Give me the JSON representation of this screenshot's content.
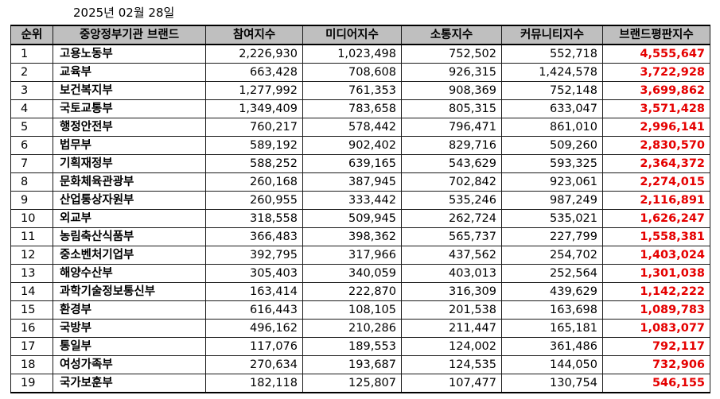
{
  "date_caption": "2025년 02월 28일",
  "colors": {
    "header_bg": "#bfbfbf",
    "brand_index_text": "#e50000",
    "border": "#1a1a1a"
  },
  "table": {
    "headers": [
      "순위",
      "중앙정부기관 브랜드",
      "참여지수",
      "미디어지수",
      "소통지수",
      "커뮤니티지수",
      "브랜드평판지수"
    ],
    "rows": [
      {
        "rank": "1",
        "name": "고용노동부",
        "participation": "2,226,930",
        "media": "1,023,498",
        "communication": "752,502",
        "community": "552,718",
        "brand_index": "4,555,647"
      },
      {
        "rank": "2",
        "name": "교육부",
        "participation": "663,428",
        "media": "708,608",
        "communication": "926,315",
        "community": "1,424,578",
        "brand_index": "3,722,928"
      },
      {
        "rank": "3",
        "name": "보건복지부",
        "participation": "1,277,992",
        "media": "761,353",
        "communication": "908,369",
        "community": "752,148",
        "brand_index": "3,699,862"
      },
      {
        "rank": "4",
        "name": "국토교통부",
        "participation": "1,349,409",
        "media": "783,658",
        "communication": "805,315",
        "community": "633,047",
        "brand_index": "3,571,428"
      },
      {
        "rank": "5",
        "name": "행정안전부",
        "participation": "760,217",
        "media": "578,442",
        "communication": "796,471",
        "community": "861,010",
        "brand_index": "2,996,141"
      },
      {
        "rank": "6",
        "name": "법무부",
        "participation": "589,192",
        "media": "902,402",
        "communication": "829,716",
        "community": "509,260",
        "brand_index": "2,830,570"
      },
      {
        "rank": "7",
        "name": "기획재정부",
        "participation": "588,252",
        "media": "639,165",
        "communication": "543,629",
        "community": "593,325",
        "brand_index": "2,364,372"
      },
      {
        "rank": "8",
        "name": "문화체육관광부",
        "participation": "260,168",
        "media": "387,945",
        "communication": "702,842",
        "community": "923,061",
        "brand_index": "2,274,015"
      },
      {
        "rank": "9",
        "name": "산업통상자원부",
        "participation": "260,955",
        "media": "333,442",
        "communication": "535,246",
        "community": "987,249",
        "brand_index": "2,116,891"
      },
      {
        "rank": "10",
        "name": "외교부",
        "participation": "318,558",
        "media": "509,945",
        "communication": "262,724",
        "community": "535,021",
        "brand_index": "1,626,247"
      },
      {
        "rank": "11",
        "name": "농림축산식품부",
        "participation": "366,483",
        "media": "398,362",
        "communication": "565,737",
        "community": "227,799",
        "brand_index": "1,558,381"
      },
      {
        "rank": "12",
        "name": "중소벤처기업부",
        "participation": "392,795",
        "media": "317,966",
        "communication": "437,562",
        "community": "254,702",
        "brand_index": "1,403,024"
      },
      {
        "rank": "13",
        "name": "해양수산부",
        "participation": "305,403",
        "media": "340,059",
        "communication": "403,013",
        "community": "252,564",
        "brand_index": "1,301,038"
      },
      {
        "rank": "14",
        "name": "과학기술정보통신부",
        "participation": "163,414",
        "media": "222,870",
        "communication": "316,309",
        "community": "439,629",
        "brand_index": "1,142,222"
      },
      {
        "rank": "15",
        "name": "환경부",
        "participation": "616,443",
        "media": "108,105",
        "communication": "201,538",
        "community": "163,698",
        "brand_index": "1,089,783"
      },
      {
        "rank": "16",
        "name": "국방부",
        "participation": "496,162",
        "media": "210,286",
        "communication": "211,447",
        "community": "165,181",
        "brand_index": "1,083,077"
      },
      {
        "rank": "17",
        "name": "통일부",
        "participation": "117,076",
        "media": "189,553",
        "communication": "124,002",
        "community": "361,486",
        "brand_index": "792,117"
      },
      {
        "rank": "18",
        "name": "여성가족부",
        "participation": "270,634",
        "media": "193,687",
        "communication": "124,535",
        "community": "144,050",
        "brand_index": "732,906"
      },
      {
        "rank": "19",
        "name": "국가보훈부",
        "participation": "182,118",
        "media": "125,807",
        "communication": "107,477",
        "community": "130,754",
        "brand_index": "546,155"
      }
    ]
  }
}
